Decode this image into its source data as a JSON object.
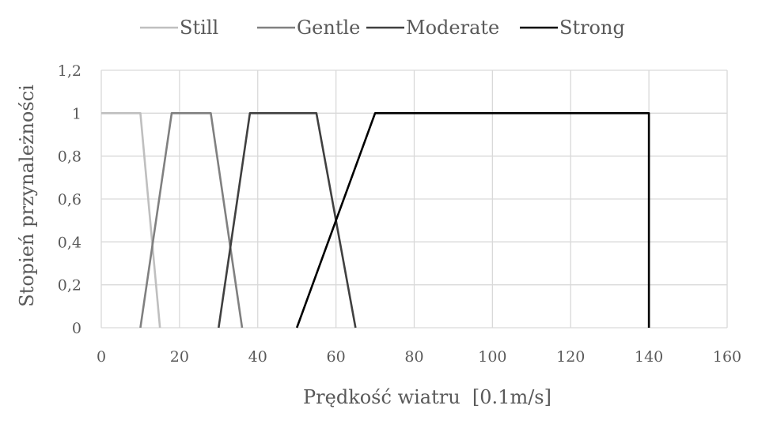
{
  "chart_data": {
    "type": "line",
    "title": "",
    "xlabel": "Prędkość wiatru  [0.1m/s]",
    "ylabel": "Stopień przynależności",
    "xlim": [
      0,
      160
    ],
    "ylim": [
      0,
      1.2
    ],
    "x_ticks": [
      0,
      20,
      40,
      60,
      80,
      100,
      120,
      140,
      160
    ],
    "y_ticks": [
      0,
      0.2,
      0.4,
      0.6,
      0.8,
      1,
      1.2
    ],
    "x_tick_labels": [
      "0",
      "20",
      "40",
      "60",
      "80",
      "100",
      "120",
      "140",
      "160"
    ],
    "y_tick_labels": [
      "0",
      "0,2",
      "0,4",
      "0,6",
      "0,8",
      "1",
      "1,2"
    ],
    "grid": true,
    "legend_position": "top",
    "series": [
      {
        "name": "Still",
        "color": "#bfbfbf",
        "x": [
          0,
          10,
          15
        ],
        "y": [
          1,
          1,
          0
        ]
      },
      {
        "name": "Gentle",
        "color": "#808080",
        "x": [
          10,
          18,
          28,
          36
        ],
        "y": [
          0,
          1,
          1,
          0
        ]
      },
      {
        "name": "Moderate",
        "color": "#404040",
        "x": [
          30,
          38,
          55,
          65
        ],
        "y": [
          0,
          1,
          1,
          0
        ]
      },
      {
        "name": "Strong",
        "color": "#000000",
        "x": [
          50,
          70,
          140,
          140
        ],
        "y": [
          0,
          1,
          1,
          0
        ]
      }
    ]
  }
}
